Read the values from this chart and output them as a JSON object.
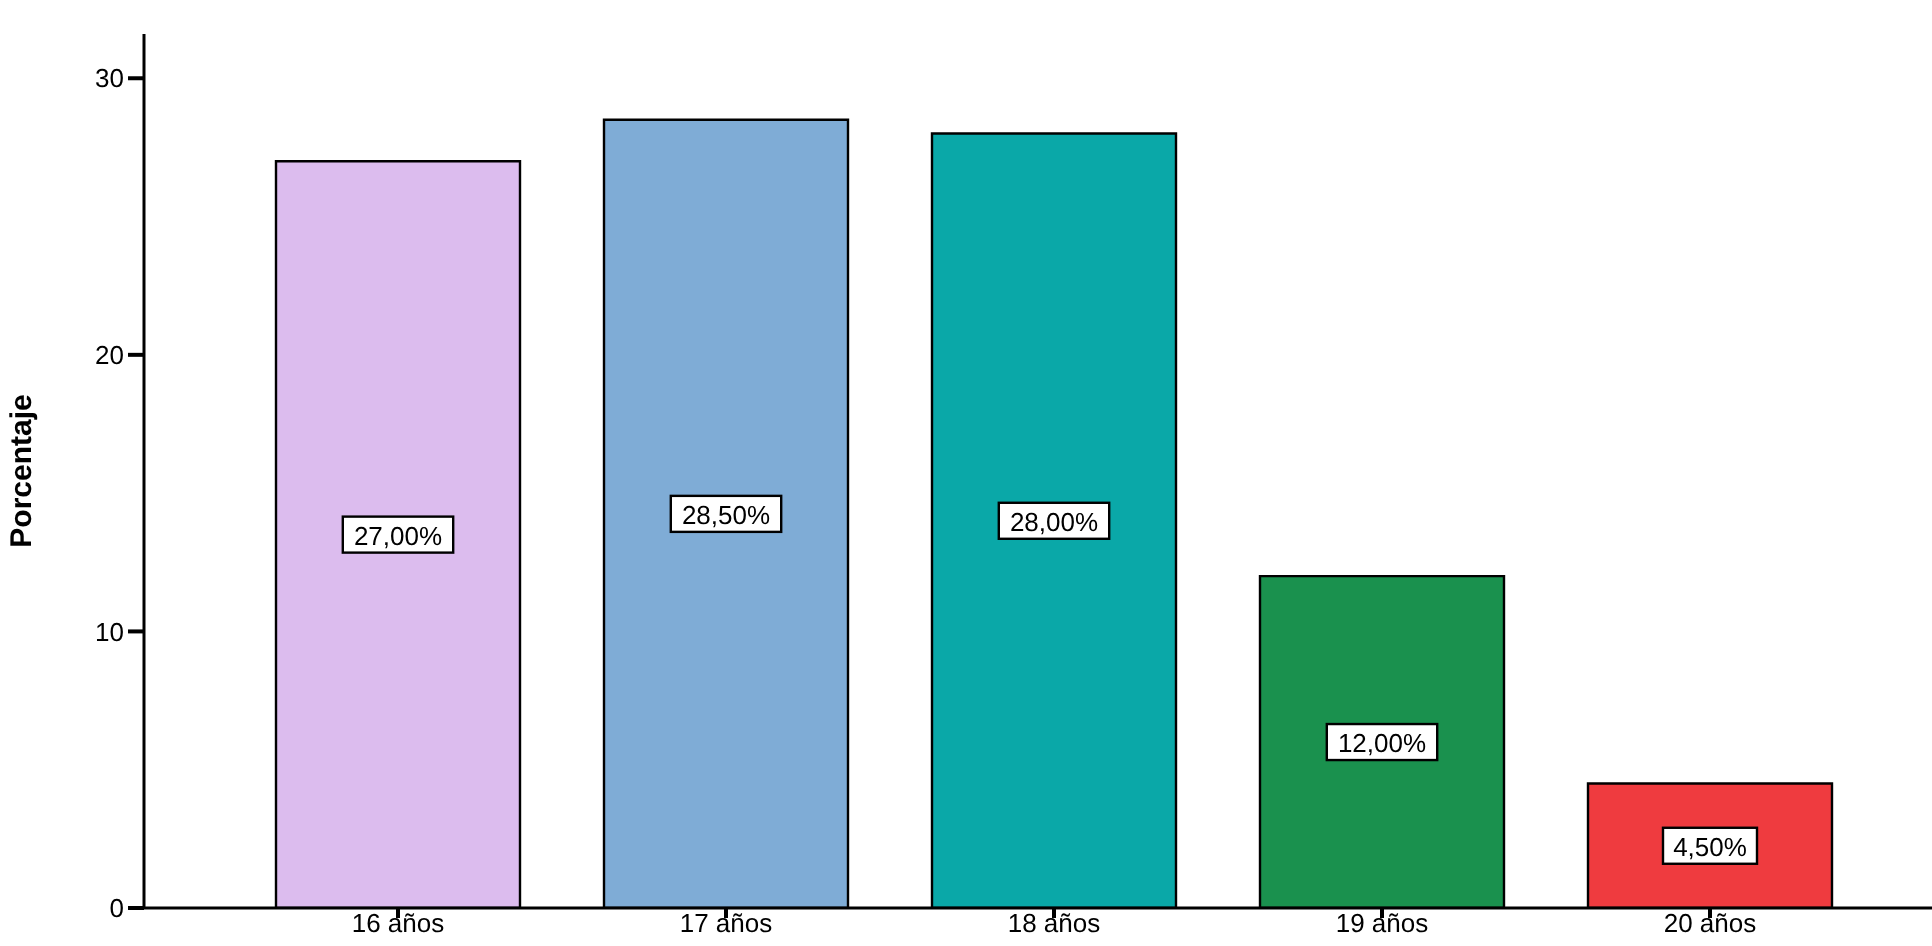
{
  "chart_data": {
    "type": "bar",
    "ylabel": "Porcentaje",
    "categories": [
      "16 años",
      "17 años",
      "18 años",
      "19 años",
      "20 años"
    ],
    "values": [
      27,
      28.5,
      28,
      12,
      4.5
    ],
    "colors": [
      "#dcbcee",
      "#7facd6",
      "#0aa8a8",
      "#1a914e",
      "#ef3b3f"
    ],
    "value_labels": [
      "27,00%",
      "28,50%",
      "28,00%",
      "12,00%",
      "4,50%"
    ],
    "ylim": [
      0,
      31.6
    ],
    "yticks": [
      0,
      10,
      20,
      30
    ],
    "grid": false,
    "legend": false
  }
}
